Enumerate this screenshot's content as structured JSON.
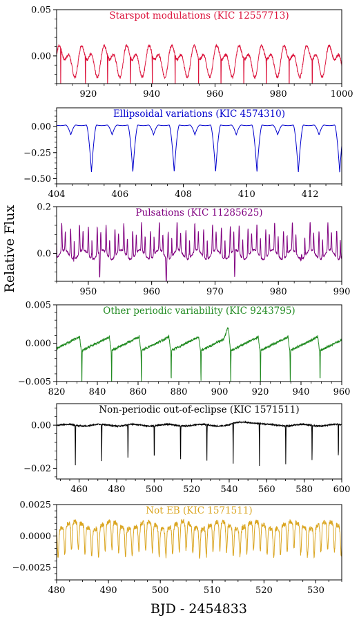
{
  "figure": {
    "ylabel": "Relative Flux",
    "xlabel": "BJD - 2454833"
  },
  "chart_data": [
    {
      "type": "line",
      "title": "Starspot modulations (KIC 12557713)",
      "color": "#dc143c",
      "xlim": [
        910,
        1000
      ],
      "ylim": [
        -0.03,
        0.05
      ],
      "xticks": [
        920,
        940,
        960,
        980,
        1000
      ],
      "xtick_labels": [
        "920",
        "940",
        "960",
        "980",
        "1000"
      ],
      "yticks": [
        0.0,
        0.05
      ],
      "ytick_labels": [
        "0.00",
        "0.05"
      ],
      "signal": {
        "kind": "starspot",
        "period": 7.1,
        "phase0": 910.0,
        "amplitude": 0.02,
        "offset": -0.004,
        "eclipses": [
          911.3,
          919.1,
          926.1,
          933.3,
          940.2,
          947.4,
          954.8,
          961.9,
          969.1,
          976.2,
          983.4,
          990.7
        ],
        "eclipse_depth": 0.06,
        "eclipse_width": 0.06
      }
    },
    {
      "type": "line",
      "title": "Ellipsoidal variations (KIC 4574310)",
      "color": "#0000cd",
      "xlim": [
        404,
        413
      ],
      "ylim": [
        -0.55,
        0.18
      ],
      "xticks": [
        404,
        406,
        408,
        410,
        412
      ],
      "xtick_labels": [
        "404",
        "406",
        "408",
        "410",
        "412"
      ],
      "yticks": [
        0.0,
        -0.25,
        -0.5
      ],
      "ytick_labels": [
        "0.00",
        "−0.25",
        "−0.50"
      ],
      "signal": {
        "kind": "ellipsoidal",
        "period": 1.306,
        "primary_t0": 405.1,
        "primary_depth": 0.46,
        "secondary_depth": 0.1,
        "eclipse_width": 0.16
      }
    },
    {
      "type": "line",
      "title": "Pulsations (KIC 11285625)",
      "color": "#800080",
      "xlim": [
        945,
        990
      ],
      "ylim": [
        -0.12,
        0.2
      ],
      "xticks": [
        950,
        960,
        970,
        980,
        990
      ],
      "xtick_labels": [
        "950",
        "960",
        "970",
        "980",
        "990"
      ],
      "yticks": [
        0.0,
        0.2
      ],
      "ytick_labels": [
        "0.0",
        "0.2"
      ],
      "signal": {
        "kind": "pulsation",
        "period": 1.4,
        "phase0": 945.6,
        "eclipses": [
          951.8,
          962.3,
          973.1,
          983.6
        ],
        "eclipse_depth": 0.13
      }
    },
    {
      "type": "line",
      "title": "Other periodic variability (KIC 9243795)",
      "color": "#228b22",
      "xlim": [
        820,
        960
      ],
      "ylim": [
        -0.005,
        0.005
      ],
      "xticks": [
        820,
        840,
        860,
        880,
        900,
        920,
        940,
        960
      ],
      "xtick_labels": [
        "820",
        "840",
        "860",
        "880",
        "900",
        "920",
        "940",
        "960"
      ],
      "yticks": [
        0.005,
        0.0,
        -0.005
      ],
      "ytick_labels": [
        "0.005",
        "0.000",
        "−0.005"
      ],
      "signal": {
        "kind": "sawtooth",
        "period": 14.62,
        "primary_t0": 832.4,
        "amplitude": 0.0008,
        "eclipse_depth": 0.0046
      }
    },
    {
      "type": "line",
      "title": "Non-periodic out-of-eclipse (KIC 1571511)",
      "color": "#000000",
      "xlim": [
        448,
        600
      ],
      "ylim": [
        -0.025,
        0.01
      ],
      "xticks": [
        460,
        480,
        500,
        520,
        540,
        560,
        580,
        600
      ],
      "xtick_labels": [
        "460",
        "480",
        "500",
        "520",
        "540",
        "560",
        "580",
        "600"
      ],
      "yticks": [
        0.0,
        -0.02
      ],
      "ytick_labels": [
        "0.00",
        "−0.02"
      ],
      "signal": {
        "kind": "eclipsing",
        "period": 14.02,
        "primary_t0": 458.0,
        "eclipse_depth": 0.02
      }
    },
    {
      "type": "line",
      "title": "Not EB (KIC 1571511)",
      "color": "#daa520",
      "xlim": [
        480,
        535
      ],
      "ylim": [
        -0.0035,
        0.0025
      ],
      "xticks": [
        480,
        490,
        500,
        510,
        520,
        530
      ],
      "xtick_labels": [
        "480",
        "490",
        "500",
        "510",
        "520",
        "530"
      ],
      "yticks": [
        0.0025,
        0.0,
        -0.0025
      ],
      "ytick_labels": [
        "0.0025",
        "0.0000",
        "−0.0025"
      ],
      "signal": {
        "kind": "irregular",
        "period": 1.3,
        "amplitude": 0.0014
      }
    }
  ]
}
